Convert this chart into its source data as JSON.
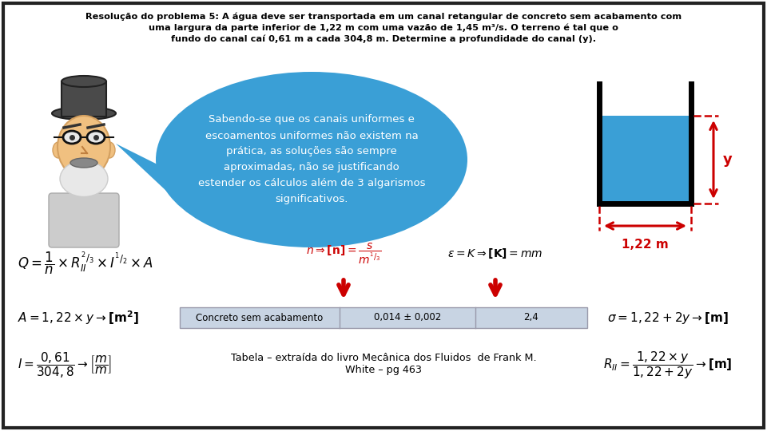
{
  "title_line1": "Resolução do problema 5: A água deve ser transportada em um canal retangular de concreto sem acabamento com",
  "title_line2": "uma largura da parte inferior de 1,22 m com uma vazão de 1,45 m³/s. O terreno é tal que o",
  "title_line3": "fundo do canal caí 0,61 m a cada 304,8 m. Determine a profundidade do canal (y).",
  "bubble_text": "Sabendo-se que os canais uniformes e\nescoamentos uniformes não existem na\nprática, as soluções são sempre\naproximadas, não se justificando\nestender os cálculos além de 3 algarismos\nsignificativos.",
  "bg_color": "#ffffff",
  "border_color": "#000000",
  "blue_water": "#3a9fd6",
  "red_color": "#cc0000",
  "table_row": [
    "Concreto sem acabamento",
    "0,014 ± 0,002",
    "2,4"
  ],
  "table_bg": "#c8d4e3",
  "bubble_bg": "#3a9fd6",
  "bubble_text_color": "#ffffff",
  "formula_q": "$Q=\\dfrac{1}{n}\\times R_{II}^{2/3}\\times I^{1/2}\\times A$",
  "formula_n": "$n\\Rightarrow\\mathbf{[n]}=\\dfrac{s}{m^{1/3}}$",
  "formula_eps": "$\\varepsilon=K\\Rightarrow\\mathbf{[K]}=mm$",
  "formula_a": "$A=1,22\\times y\\rightarrow\\mathbf{[m^2]}$",
  "formula_sigma": "$\\sigma=1,22+2y\\rightarrow\\mathbf{[m]}$",
  "formula_i": "$I=\\dfrac{0,61}{304,8}\\rightarrow\\left[\\dfrac{m}{m}\\right]$",
  "formula_rh": "$R_{II}=\\dfrac{1,22\\times y}{1,22+2y}\\rightarrow\\mathbf{[m]}$",
  "tabela_line1": "Tabela – extraída do livro Mecânica dos Fluidos  de Frank M.",
  "tabela_line2": "White – pg 463"
}
